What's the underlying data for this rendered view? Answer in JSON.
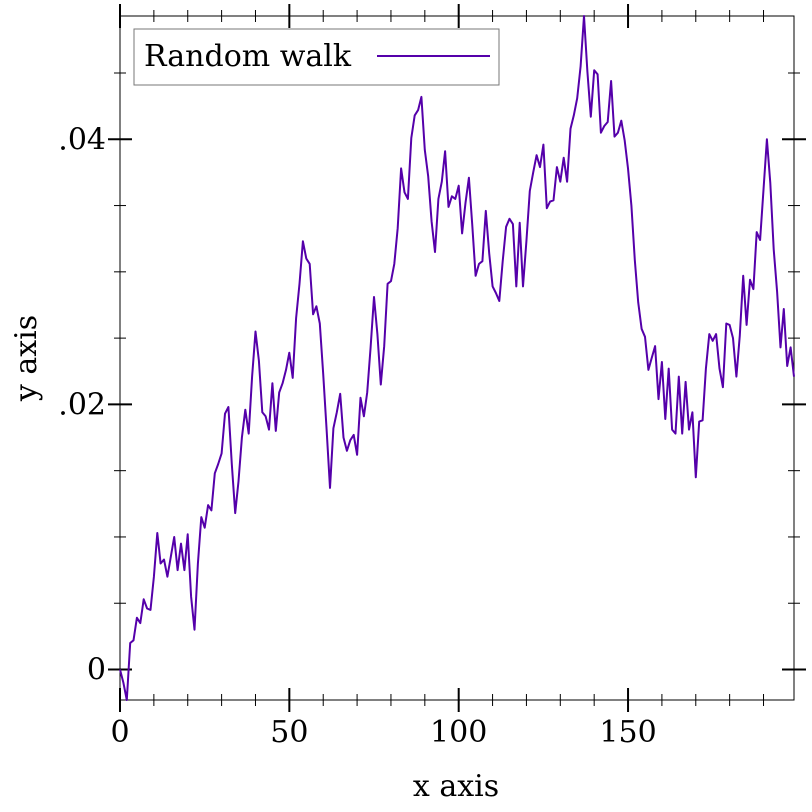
{
  "chart_data": {
    "type": "line",
    "title": "",
    "xlabel": "x axis",
    "ylabel": "y axis",
    "xlim": [
      0,
      199
    ],
    "ylim": [
      -0.0023,
      0.0493
    ],
    "grid": false,
    "legend_position": "top-left",
    "x_ticks": [
      {
        "value": 0,
        "label": "0"
      },
      {
        "value": 50,
        "label": "50"
      },
      {
        "value": 100,
        "label": "100"
      },
      {
        "value": 150,
        "label": "150"
      }
    ],
    "y_ticks": [
      {
        "value": 0,
        "label": "0"
      },
      {
        "value": 0.02,
        "label": ".02"
      },
      {
        "value": 0.04,
        "label": ".04"
      }
    ],
    "series": [
      {
        "name": "Random walk",
        "color": "#5500aa",
        "x": [
          0,
          1,
          2,
          3,
          4,
          5,
          6,
          7,
          8,
          9,
          10,
          11,
          12,
          13,
          14,
          15,
          16,
          17,
          18,
          19,
          20,
          21,
          22,
          23,
          24,
          25,
          26,
          27,
          28,
          29,
          30,
          31,
          32,
          33,
          34,
          35,
          36,
          37,
          38,
          39,
          40,
          41,
          42,
          43,
          44,
          45,
          46,
          47,
          48,
          49,
          50,
          51,
          52,
          53,
          54,
          55,
          56,
          57,
          58,
          59,
          60,
          61,
          62,
          63,
          64,
          65,
          66,
          67,
          68,
          69,
          70,
          71,
          72,
          73,
          74,
          75,
          76,
          77,
          78,
          79,
          80,
          81,
          82,
          83,
          84,
          85,
          86,
          87,
          88,
          89,
          90,
          91,
          92,
          93,
          94,
          95,
          96,
          97,
          98,
          99,
          100,
          101,
          102,
          103,
          104,
          105,
          106,
          107,
          108,
          109,
          110,
          111,
          112,
          113,
          114,
          115,
          116,
          117,
          118,
          119,
          120,
          121,
          122,
          123,
          124,
          125,
          126,
          127,
          128,
          129,
          130,
          131,
          132,
          133,
          134,
          135,
          136,
          137,
          138,
          139,
          140,
          141,
          142,
          143,
          144,
          145,
          146,
          147,
          148,
          149,
          150,
          151,
          152,
          153,
          154,
          155,
          156,
          157,
          158,
          159,
          160,
          161,
          162,
          163,
          164,
          165,
          166,
          167,
          168,
          169,
          170,
          171,
          172,
          173,
          174,
          175,
          176,
          177,
          178,
          179,
          180,
          181,
          182,
          183,
          184,
          185,
          186,
          187,
          188,
          189,
          190,
          191,
          192,
          193,
          194,
          195,
          196,
          197,
          198,
          199
        ],
        "y": [
          0,
          -0.001,
          -0.0023,
          0.002,
          0.0022,
          0.0039,
          0.0035,
          0.0053,
          0.0046,
          0.0045,
          0.007,
          0.0103,
          0.008,
          0.0083,
          0.007,
          0.0085,
          0.01,
          0.0075,
          0.0095,
          0.0075,
          0.0102,
          0.0055,
          0.003,
          0.008,
          0.0115,
          0.0107,
          0.0124,
          0.012,
          0.0148,
          0.0155,
          0.0163,
          0.0193,
          0.0198,
          0.0155,
          0.0118,
          0.0142,
          0.0175,
          0.0196,
          0.0178,
          0.0221,
          0.0255,
          0.0233,
          0.0194,
          0.0191,
          0.0181,
          0.0216,
          0.018,
          0.0209,
          0.0216,
          0.0226,
          0.0239,
          0.022,
          0.0265,
          0.0291,
          0.0323,
          0.031,
          0.0306,
          0.0268,
          0.0274,
          0.0261,
          0.0223,
          0.0181,
          0.0137,
          0.0182,
          0.0194,
          0.0208,
          0.0175,
          0.0165,
          0.0173,
          0.0177,
          0.0162,
          0.0205,
          0.0191,
          0.0209,
          0.0243,
          0.0281,
          0.0253,
          0.0215,
          0.0244,
          0.0291,
          0.0293,
          0.0306,
          0.0333,
          0.0378,
          0.036,
          0.0355,
          0.0401,
          0.0418,
          0.0422,
          0.0432,
          0.0392,
          0.0372,
          0.0338,
          0.0315,
          0.0355,
          0.0368,
          0.0391,
          0.0349,
          0.0357,
          0.0355,
          0.0365,
          0.0329,
          0.0352,
          0.0371,
          0.0336,
          0.0297,
          0.0306,
          0.0308,
          0.0346,
          0.0314,
          0.0289,
          0.0284,
          0.0278,
          0.0308,
          0.0334,
          0.034,
          0.0336,
          0.0289,
          0.0337,
          0.0289,
          0.0323,
          0.0361,
          0.0375,
          0.0388,
          0.0379,
          0.0396,
          0.0348,
          0.0353,
          0.0354,
          0.0379,
          0.0368,
          0.0386,
          0.0368,
          0.0408,
          0.0418,
          0.0431,
          0.0455,
          0.0493,
          0.0451,
          0.0417,
          0.0452,
          0.0449,
          0.0405,
          0.041,
          0.0413,
          0.0444,
          0.0402,
          0.0405,
          0.0414,
          0.0399,
          0.0378,
          0.035,
          0.0309,
          0.0277,
          0.0257,
          0.0251,
          0.0226,
          0.0235,
          0.0244,
          0.0204,
          0.0232,
          0.0189,
          0.0227,
          0.0181,
          0.0178,
          0.0221,
          0.0178,
          0.0217,
          0.0181,
          0.0194,
          0.0145,
          0.0187,
          0.0188,
          0.0227,
          0.0253,
          0.0248,
          0.0253,
          0.0227,
          0.0213,
          0.0261,
          0.026,
          0.025,
          0.0221,
          0.0252,
          0.0297,
          0.026,
          0.0294,
          0.0287,
          0.033,
          0.0324,
          0.0362,
          0.04,
          0.0367,
          0.0317,
          0.0285,
          0.0243,
          0.0272,
          0.0229,
          0.0243,
          0.0221
        ]
      }
    ]
  }
}
